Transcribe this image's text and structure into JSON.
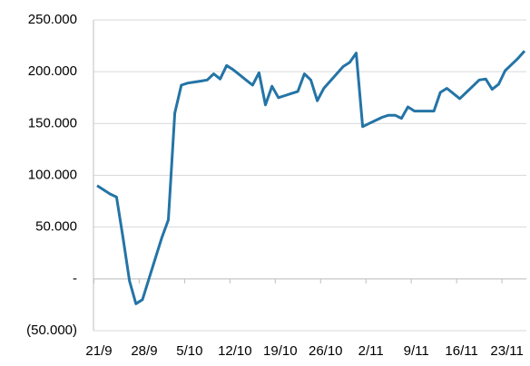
{
  "chart_data": {
    "type": "line",
    "categories": [
      "21/9",
      null,
      null,
      null,
      null,
      null,
      null,
      "28/9",
      null,
      null,
      null,
      null,
      null,
      null,
      "5/10",
      null,
      null,
      null,
      null,
      null,
      null,
      "12/10",
      null,
      null,
      null,
      null,
      null,
      null,
      "19/10",
      null,
      null,
      null,
      null,
      null,
      null,
      "26/10",
      null,
      null,
      null,
      null,
      null,
      null,
      "2/11",
      null,
      null,
      null,
      null,
      null,
      null,
      "9/11",
      null,
      null,
      null,
      null,
      null,
      null,
      "16/11",
      null,
      null,
      null,
      null,
      null,
      null,
      "23/11",
      null,
      null,
      null
    ],
    "values": [
      90000,
      86000,
      82000,
      79000,
      40000,
      -2000,
      -24000,
      -20000,
      0,
      20000,
      40000,
      57000,
      160000,
      187000,
      189000,
      190000,
      191000,
      192000,
      198000,
      193000,
      206000,
      202000,
      197000,
      192000,
      187000,
      199000,
      168000,
      186000,
      175000,
      177000,
      179000,
      181000,
      198000,
      192000,
      172000,
      184000,
      191000,
      198000,
      205000,
      209000,
      218000,
      147000,
      150000,
      153000,
      156000,
      158000,
      158000,
      155000,
      166000,
      162000,
      162000,
      162000,
      162000,
      180000,
      184000,
      179000,
      174000,
      180000,
      186000,
      192000,
      193000,
      183000,
      188000,
      201000,
      207000,
      213000,
      220000
    ],
    "color": "#2474a6",
    "ylim": [
      -50000,
      250000
    ],
    "yticks": [
      {
        "value": -50000,
        "label": "(50.000)"
      },
      {
        "value": 0,
        "label": "-"
      },
      {
        "value": 50000,
        "label": "50.000"
      },
      {
        "value": 100000,
        "label": "100.000"
      },
      {
        "value": 150000,
        "label": "150.000"
      },
      {
        "value": 200000,
        "label": "200.000"
      },
      {
        "value": 250000,
        "label": "250.000"
      }
    ],
    "grid": true
  }
}
